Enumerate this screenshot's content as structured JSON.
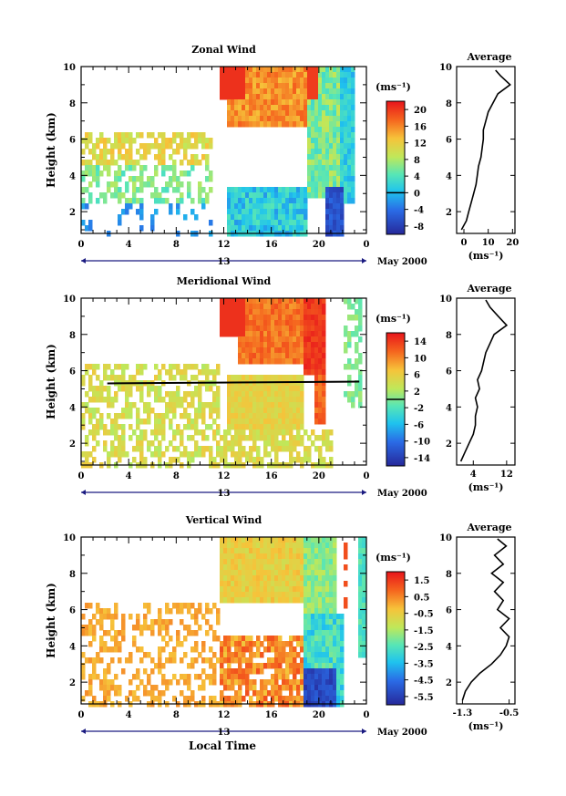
{
  "figure": {
    "bottom_xlabel": "Local Time"
  },
  "chart_data": [
    {
      "type": "heatmap",
      "title": "Zonal Wind",
      "ylabel": "Height (km)",
      "unit_label": "(ms⁻¹)",
      "x_ticks": [
        "0",
        "4",
        "8",
        "12",
        "16",
        "20",
        "0"
      ],
      "x_range_hours": [
        0,
        24
      ],
      "y_ticks": [
        "2",
        "4",
        "6",
        "8",
        "10"
      ],
      "ylim": [
        0.8,
        10
      ],
      "date_tick": "13",
      "date_label": "May 2000",
      "colorbar": {
        "labels": [
          "20",
          "16",
          "12",
          "8",
          "4",
          "0",
          "-4",
          "-8"
        ],
        "range": [
          -10,
          22
        ],
        "zero_line": 0
      },
      "average": {
        "title": "Average",
        "xlabel": "(ms⁻¹)",
        "x_ticks": [
          "0",
          "10",
          "20"
        ],
        "xlim": [
          -3,
          21
        ],
        "y_ticks": [
          "2",
          "4",
          "6",
          "8",
          "10"
        ],
        "ylim": [
          0.8,
          10
        ],
        "profile": [
          {
            "z": 1.0,
            "v": -1
          },
          {
            "z": 1.5,
            "v": 1
          },
          {
            "z": 2.0,
            "v": 2
          },
          {
            "z": 2.5,
            "v": 3
          },
          {
            "z": 3.0,
            "v": 4
          },
          {
            "z": 3.5,
            "v": 5
          },
          {
            "z": 4.0,
            "v": 5.5
          },
          {
            "z": 4.5,
            "v": 6
          },
          {
            "z": 5.0,
            "v": 7
          },
          {
            "z": 5.5,
            "v": 7.5
          },
          {
            "z": 6.0,
            "v": 8
          },
          {
            "z": 6.5,
            "v": 8
          },
          {
            "z": 7.0,
            "v": 9
          },
          {
            "z": 7.5,
            "v": 10
          },
          {
            "z": 8.0,
            "v": 12
          },
          {
            "z": 8.5,
            "v": 14
          },
          {
            "z": 9.0,
            "v": 19
          },
          {
            "z": 9.5,
            "v": 15
          },
          {
            "z": 9.8,
            "v": 13
          }
        ]
      }
    },
    {
      "type": "heatmap",
      "title": "Meridional Wind",
      "ylabel": "Height (km)",
      "unit_label": "(ms⁻¹)",
      "x_ticks": [
        "0",
        "4",
        "8",
        "12",
        "16",
        "20",
        "0"
      ],
      "x_range_hours": [
        0,
        24
      ],
      "y_ticks": [
        "2",
        "4",
        "6",
        "8",
        "10"
      ],
      "ylim": [
        0.8,
        10
      ],
      "date_tick": "13",
      "date_label": "May 2000",
      "colorbar": {
        "labels": [
          "14",
          "10",
          "6",
          "2",
          "-2",
          "-6",
          "-10",
          "-14"
        ],
        "range": [
          -16,
          16
        ],
        "zero_line": 0
      },
      "average": {
        "title": "Average",
        "xlabel": "(ms⁻¹)",
        "x_ticks": [
          "4",
          "12"
        ],
        "xlim": [
          0,
          14
        ],
        "y_ticks": [
          "2",
          "4",
          "6",
          "8",
          "10"
        ],
        "ylim": [
          0.8,
          10
        ],
        "profile": [
          {
            "z": 1.0,
            "v": 1
          },
          {
            "z": 1.5,
            "v": 2
          },
          {
            "z": 2.0,
            "v": 3
          },
          {
            "z": 2.5,
            "v": 4
          },
          {
            "z": 3.0,
            "v": 4.5
          },
          {
            "z": 3.5,
            "v": 4.5
          },
          {
            "z": 4.0,
            "v": 5
          },
          {
            "z": 4.5,
            "v": 4.5
          },
          {
            "z": 5.0,
            "v": 5.5
          },
          {
            "z": 5.5,
            "v": 5
          },
          {
            "z": 6.0,
            "v": 6
          },
          {
            "z": 6.5,
            "v": 6.5
          },
          {
            "z": 7.0,
            "v": 7
          },
          {
            "z": 7.5,
            "v": 8
          },
          {
            "z": 8.0,
            "v": 9
          },
          {
            "z": 8.5,
            "v": 12
          },
          {
            "z": 9.0,
            "v": 10
          },
          {
            "z": 9.5,
            "v": 8
          },
          {
            "z": 9.9,
            "v": 7
          }
        ]
      }
    },
    {
      "type": "heatmap",
      "title": "Vertical Wind",
      "ylabel": "Height (km)",
      "unit_label": "(ms⁻¹)",
      "x_ticks": [
        "0",
        "4",
        "8",
        "12",
        "16",
        "20",
        "0"
      ],
      "x_range_hours": [
        0,
        24
      ],
      "y_ticks": [
        "2",
        "4",
        "6",
        "8",
        "10"
      ],
      "ylim": [
        0.8,
        10
      ],
      "date_tick": "13",
      "date_label": "May 2000",
      "colorbar": {
        "labels": [
          "1.5",
          "0.5",
          "-0.5",
          "-1.5",
          "-2.5",
          "-3.5",
          "-4.5",
          "-5.5"
        ],
        "range": [
          -6,
          2
        ],
        "zero_line": null
      },
      "average": {
        "title": "Average",
        "xlabel": "(ms⁻¹)",
        "x_ticks": [
          "-1.3",
          "-0.5"
        ],
        "xlim": [
          -1.4,
          -0.4
        ],
        "y_ticks": [
          "2",
          "4",
          "6",
          "8",
          "10"
        ],
        "ylim": [
          0.8,
          10
        ],
        "profile": [
          {
            "z": 1.0,
            "v": -1.3
          },
          {
            "z": 1.5,
            "v": -1.25
          },
          {
            "z": 2.0,
            "v": -1.15
          },
          {
            "z": 2.5,
            "v": -1.0
          },
          {
            "z": 3.0,
            "v": -0.8
          },
          {
            "z": 3.5,
            "v": -0.65
          },
          {
            "z": 4.0,
            "v": -0.55
          },
          {
            "z": 4.5,
            "v": -0.5
          },
          {
            "z": 5.0,
            "v": -0.65
          },
          {
            "z": 5.5,
            "v": -0.5
          },
          {
            "z": 6.0,
            "v": -0.7
          },
          {
            "z": 6.5,
            "v": -0.6
          },
          {
            "z": 7.0,
            "v": -0.75
          },
          {
            "z": 7.5,
            "v": -0.6
          },
          {
            "z": 8.0,
            "v": -0.8
          },
          {
            "z": 8.5,
            "v": -0.6
          },
          {
            "z": 9.0,
            "v": -0.75
          },
          {
            "z": 9.5,
            "v": -0.55
          },
          {
            "z": 9.9,
            "v": -0.7
          }
        ]
      }
    }
  ]
}
